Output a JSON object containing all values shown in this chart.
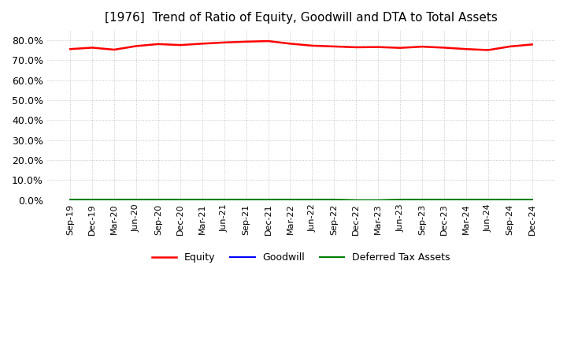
{
  "title": "[1976]  Trend of Ratio of Equity, Goodwill and DTA to Total Assets",
  "title_fontsize": 11,
  "x_labels": [
    "Sep-19",
    "Dec-19",
    "Mar-20",
    "Jun-20",
    "Sep-20",
    "Dec-20",
    "Mar-21",
    "Jun-21",
    "Sep-21",
    "Dec-21",
    "Mar-22",
    "Jun-22",
    "Sep-22",
    "Dec-22",
    "Mar-23",
    "Jun-23",
    "Sep-23",
    "Dec-23",
    "Mar-24",
    "Jun-24",
    "Sep-24",
    "Dec-24"
  ],
  "equity": [
    75.5,
    76.2,
    75.2,
    77.0,
    78.0,
    77.5,
    78.2,
    78.8,
    79.2,
    79.5,
    78.2,
    77.2,
    76.8,
    76.4,
    76.5,
    76.1,
    76.7,
    76.2,
    75.5,
    75.0,
    76.8,
    77.8
  ],
  "goodwill": [
    0.0,
    0.0,
    0.0,
    0.0,
    0.0,
    0.0,
    0.0,
    0.0,
    0.0,
    0.0,
    0.0,
    0.0,
    0.0,
    0.0,
    0.0,
    0.0,
    0.0,
    0.0,
    0.0,
    0.0,
    0.0,
    0.0
  ],
  "dta": [
    0.3,
    0.3,
    0.3,
    0.3,
    0.3,
    0.3,
    0.3,
    0.3,
    0.3,
    0.3,
    0.3,
    0.3,
    0.3,
    0.0,
    0.0,
    0.3,
    0.3,
    0.3,
    0.3,
    0.3,
    0.3,
    0.3
  ],
  "equity_color": "#ff0000",
  "goodwill_color": "#0000ff",
  "dta_color": "#008000",
  "ylim": [
    0,
    85
  ],
  "yticks": [
    0,
    10,
    20,
    30,
    40,
    50,
    60,
    70,
    80
  ],
  "ytick_labels": [
    "0.0%",
    "10.0%",
    "20.0%",
    "30.0%",
    "40.0%",
    "50.0%",
    "60.0%",
    "70.0%",
    "80.0%"
  ],
  "background_color": "#ffffff",
  "plot_bg_color": "#ffffff",
  "grid_color": "#bbbbbb",
  "legend_labels": [
    "Equity",
    "Goodwill",
    "Deferred Tax Assets"
  ]
}
